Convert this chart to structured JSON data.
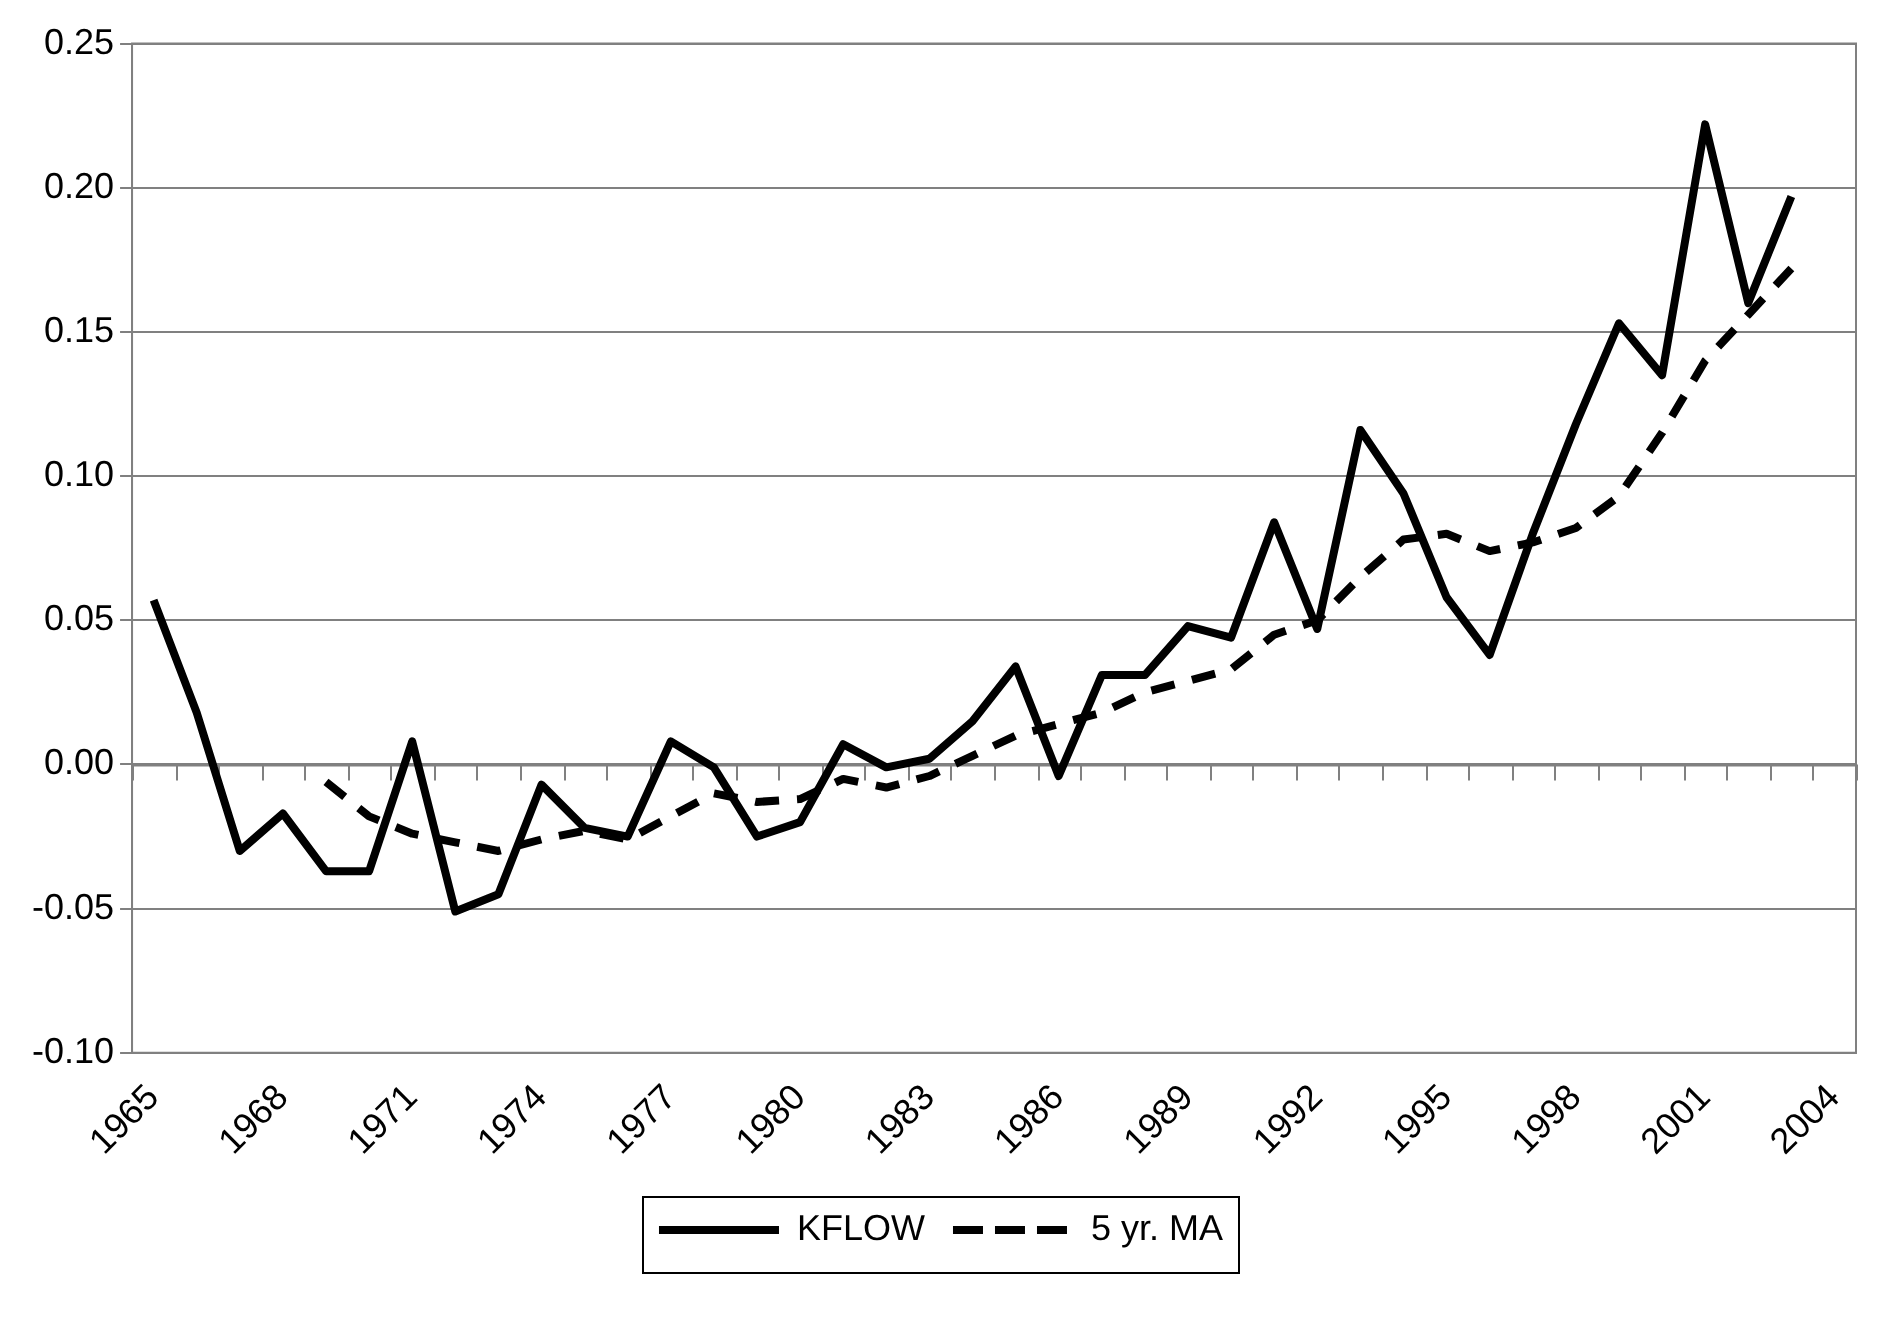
{
  "chart_data": {
    "type": "line",
    "categories": [
      "1965",
      null,
      null,
      "1968",
      null,
      null,
      "1971",
      null,
      null,
      "1974",
      null,
      null,
      "1977",
      null,
      null,
      "1980",
      null,
      null,
      "1983",
      null,
      null,
      "1986",
      null,
      null,
      "1989",
      null,
      null,
      "1992",
      null,
      null,
      "1995",
      null,
      null,
      "1998",
      null,
      null,
      "2001",
      null,
      null,
      "2004"
    ],
    "series": [
      {
        "name": "KFLOW",
        "color": "#000000",
        "line_style": "solid",
        "values": [
          0.057,
          0.018,
          -0.03,
          -0.017,
          -0.037,
          -0.037,
          0.008,
          -0.051,
          -0.045,
          -0.007,
          -0.022,
          -0.025,
          0.008,
          -0.001,
          -0.025,
          -0.02,
          0.007,
          -0.001,
          0.002,
          0.015,
          0.034,
          -0.004,
          0.031,
          0.031,
          0.048,
          0.044,
          0.084,
          0.047,
          0.116,
          0.094,
          0.058,
          0.038,
          0.08,
          0.118,
          0.153,
          0.135,
          0.222,
          0.16,
          0.197,
          null
        ]
      },
      {
        "name": "5 yr. MA",
        "color": "#000000",
        "line_style": "dashed",
        "values": [
          null,
          null,
          null,
          null,
          -0.006,
          -0.018,
          -0.024,
          -0.027,
          -0.03,
          -0.026,
          -0.023,
          -0.026,
          -0.018,
          -0.01,
          -0.013,
          -0.012,
          -0.005,
          -0.008,
          -0.004,
          0.003,
          0.01,
          0.014,
          0.018,
          0.025,
          0.029,
          0.033,
          0.045,
          0.05,
          0.065,
          0.078,
          0.08,
          0.074,
          0.077,
          0.082,
          0.093,
          0.115,
          0.14,
          0.156,
          0.172,
          null
        ]
      }
    ],
    "ylim": [
      -0.1,
      0.25
    ],
    "yticks": [
      {
        "value": -0.1,
        "label": "-0.10"
      },
      {
        "value": -0.05,
        "label": "-0.05"
      },
      {
        "value": 0,
        "label": "0.00"
      },
      {
        "value": 0.05,
        "label": "0.05"
      },
      {
        "value": 0.1,
        "label": "0.10"
      },
      {
        "value": 0.15,
        "label": "0.15"
      },
      {
        "value": 0.2,
        "label": "0.20"
      },
      {
        "value": 0.25,
        "label": "0.25"
      }
    ],
    "grid": "y",
    "legend": "bottom",
    "marker": "none"
  }
}
